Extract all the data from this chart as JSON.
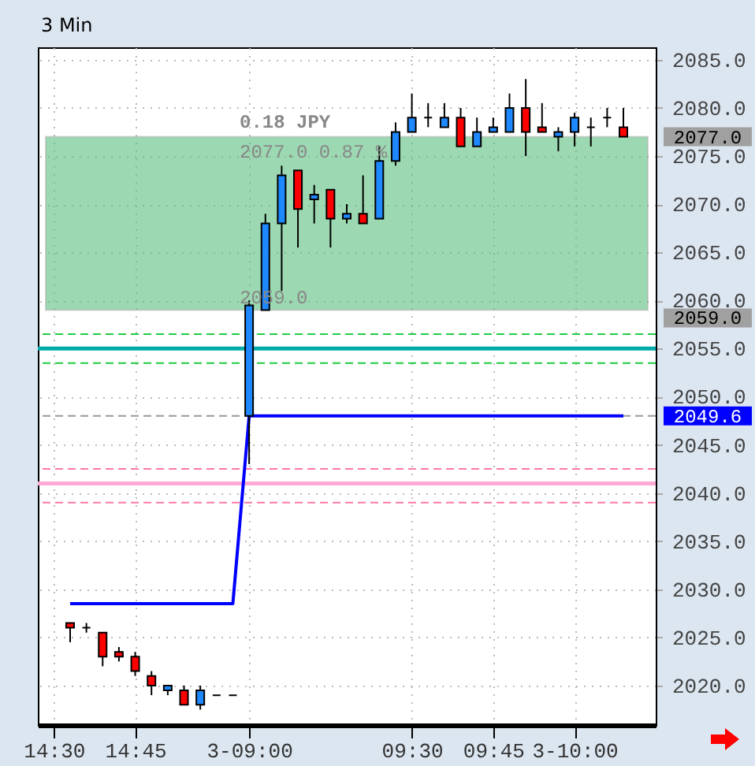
{
  "chart_data": {
    "type": "candlestick",
    "title": "3 Min",
    "categories": [
      "14:30",
      null,
      null,
      null,
      null,
      "14:45",
      null,
      null,
      null,
      null,
      null,
      null,
      "3-09:00",
      null,
      null,
      null,
      null,
      null,
      null,
      null,
      null,
      null,
      "09:30",
      null,
      null,
      null,
      null,
      "09:45",
      null,
      null,
      null,
      null,
      "3-10:00",
      null,
      null,
      null,
      null
    ],
    "ohlc": [
      null,
      [
        2026.5,
        2026.5,
        2024.5,
        2026
      ],
      [
        2026,
        2026.5,
        2025.5,
        2026
      ],
      [
        2025.5,
        2025.5,
        2022,
        2023
      ],
      [
        2023.5,
        2024,
        2022.5,
        2023
      ],
      [
        2023,
        2023.5,
        2021,
        2021.5
      ],
      [
        2021,
        2021.5,
        2019,
        2020
      ],
      [
        2019.5,
        2020,
        2019,
        2020
      ],
      [
        2019.5,
        2020,
        2018,
        2018
      ],
      [
        2018,
        2020,
        2017.5,
        2019.5
      ],
      [
        2019,
        2019,
        2019,
        2019
      ],
      [
        2019,
        2019,
        2019,
        2019
      ],
      [
        2048,
        2060,
        2043,
        2059.5
      ],
      [
        2059,
        2069,
        2059,
        2068
      ],
      [
        2068,
        2074,
        2061,
        2073
      ],
      [
        2073.5,
        2073.5,
        2065.5,
        2069.5
      ],
      [
        2070.5,
        2072,
        2068,
        2071
      ],
      [
        2071.5,
        2071.5,
        2065.5,
        2068.5
      ],
      [
        2068.5,
        2070,
        2068,
        2069
      ],
      [
        2069,
        2073,
        2068,
        2068
      ],
      [
        2068.5,
        2076,
        2068.5,
        2074.5
      ],
      [
        2074.5,
        2078.5,
        2074,
        2077.5
      ],
      [
        2077.5,
        2081.5,
        2077.5,
        2079
      ],
      [
        2079,
        2080.5,
        2078,
        2079
      ],
      [
        2078,
        2080.5,
        2078,
        2079
      ],
      [
        2079,
        2080,
        2076,
        2076
      ],
      [
        2076,
        2079,
        2076,
        2077.5
      ],
      [
        2077.5,
        2079,
        2077.5,
        2078
      ],
      [
        2077.5,
        2081.5,
        2077.5,
        2080
      ],
      [
        2080,
        2083,
        2075,
        2077.5
      ],
      [
        2078,
        2080.5,
        2077.5,
        2077.5
      ],
      [
        2077,
        2078,
        2075.5,
        2077.5
      ],
      [
        2077.5,
        2079.5,
        2076,
        2079
      ],
      [
        2078,
        2079,
        2076,
        2078
      ],
      [
        2079,
        2080,
        2078,
        2079
      ],
      [
        2078,
        2080,
        2077,
        2077
      ],
      null
    ],
    "colors": [
      null,
      "#ff0000",
      "#000000",
      "#ff0000",
      "#ff0000",
      "#ff0000",
      "#ff0000",
      "#1e88ff",
      "#ff0000",
      "#1e88ff",
      "#000000",
      "#000000",
      "#1e88ff",
      "#1e88ff",
      "#1e88ff",
      "#ff0000",
      "#1e88ff",
      "#ff0000",
      "#1e88ff",
      "#ff0000",
      "#1e88ff",
      "#1e88ff",
      "#1e88ff",
      "#000000",
      "#1e88ff",
      "#ff0000",
      "#1e88ff",
      "#1e88ff",
      "#1e88ff",
      "#ff0000",
      "#ff0000",
      "#1e88ff",
      "#1e88ff",
      "#000000",
      "#000000",
      "#ff0000",
      null
    ],
    "series": [
      {
        "type": "line",
        "color": "#0000ff",
        "values": [
          null,
          2028.5,
          2028.5,
          2028.5,
          2028.5,
          2028.5,
          2028.5,
          2028.5,
          2028.5,
          2028.5,
          2028.5,
          2028.5,
          2048,
          2048,
          2048,
          2048,
          2048,
          2048,
          2048,
          2048,
          2048,
          2048,
          2048,
          2048,
          2048,
          2048,
          2048,
          2048,
          2048,
          2048,
          2048,
          2048,
          2048,
          2048,
          2048,
          2048,
          null
        ]
      }
    ],
    "ylim": [
      2015.9,
      2086.3
    ],
    "yticks": [
      {
        "value": 2020,
        "label": "2020.0"
      },
      {
        "value": 2025,
        "label": "2025.0"
      },
      {
        "value": 2030,
        "label": "2030.0"
      },
      {
        "value": 2035,
        "label": "2035.0"
      },
      {
        "value": 2040,
        "label": "2040.0"
      },
      {
        "value": 2045,
        "label": "2045.0"
      },
      {
        "value": 2050,
        "label": "2050.0"
      },
      {
        "value": 2055,
        "label": "2055.0"
      },
      {
        "value": 2060,
        "label": "2060.0"
      },
      {
        "value": 2065,
        "label": "2065.0"
      },
      {
        "value": 2070,
        "label": "2070.0"
      },
      {
        "value": 2075,
        "label": "2075.0"
      },
      {
        "value": 2080,
        "label": "2080.0"
      },
      {
        "value": 2085,
        "label": "2085.0"
      }
    ],
    "grid": true,
    "ref_lines": [
      {
        "axis": "y",
        "value": 2056.5,
        "color": "#22cc44",
        "line_style": "dashed"
      },
      {
        "axis": "y",
        "value": 2055,
        "color": "#00aaaa",
        "line_style": "solid"
      },
      {
        "axis": "y",
        "value": 2053.5,
        "color": "#22cc44",
        "line_style": "dashed"
      },
      {
        "axis": "y",
        "value": 2048,
        "color": "#999999",
        "line_style": "dashed"
      },
      {
        "axis": "y",
        "value": 2042.5,
        "color": "#ff77aa",
        "line_style": "dashed"
      },
      {
        "axis": "y",
        "value": 2041,
        "color": "#ffaad4",
        "line_style": "solid"
      },
      {
        "axis": "y",
        "value": 2039,
        "color": "#ff77aa",
        "line_style": "dashed"
      }
    ],
    "bands": [
      {
        "axis": "y",
        "from": 2059,
        "to": 2077,
        "color": "#5cbf80"
      }
    ],
    "annotations": [
      "0.18 JPY",
      "2077.0   0.87 %",
      "2059.0",
      "2077.0",
      "2059.0",
      "2049.6"
    ]
  }
}
